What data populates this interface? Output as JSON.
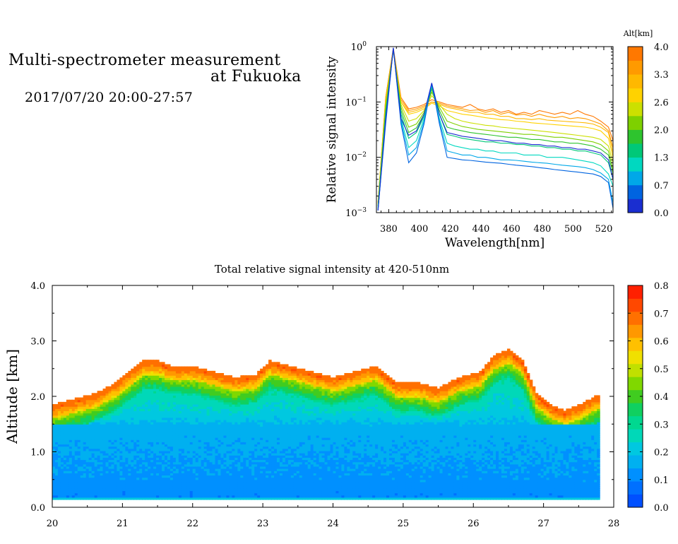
{
  "header": {
    "title_line1": "Multi-spectrometer measurement",
    "title_line2": "at Fukuoka",
    "datetime": "2017/07/20 20:00-27:57"
  },
  "chart_data": [
    {
      "type": "line",
      "xlabel": "Wavelength[nm]",
      "ylabel": "Relative signal intensity",
      "yscale": "log",
      "xlim": [
        372,
        526
      ],
      "ylim": [
        0.001,
        1
      ],
      "x_ticks": [
        380,
        400,
        420,
        440,
        460,
        480,
        500,
        520
      ],
      "y_ticks": [
        {
          "value": 1,
          "base": "10",
          "exp": "0"
        },
        {
          "value": 0.1,
          "base": "10",
          "exp": "−1"
        },
        {
          "value": 0.01,
          "base": "10",
          "exp": "−2"
        },
        {
          "value": 0.001,
          "base": "10",
          "exp": "−3"
        }
      ],
      "x": [
        373,
        378,
        383,
        388,
        393,
        398,
        403,
        408,
        413,
        418,
        423,
        428,
        433,
        438,
        443,
        448,
        453,
        458,
        463,
        468,
        473,
        478,
        483,
        488,
        493,
        498,
        503,
        508,
        513,
        518,
        523,
        526
      ],
      "series": [
        {
          "color": "#ff7800",
          "values": [
            0.0015,
            0.12,
            0.95,
            0.12,
            0.075,
            0.08,
            0.09,
            0.11,
            0.1,
            0.09,
            0.085,
            0.08,
            0.09,
            0.075,
            0.07,
            0.075,
            0.065,
            0.07,
            0.06,
            0.065,
            0.06,
            0.07,
            0.065,
            0.06,
            0.065,
            0.06,
            0.07,
            0.06,
            0.055,
            0.045,
            0.035,
            0.02
          ]
        },
        {
          "color": "#ff9a00",
          "values": [
            0.0015,
            0.12,
            0.9,
            0.11,
            0.07,
            0.075,
            0.085,
            0.1,
            0.095,
            0.085,
            0.08,
            0.075,
            0.07,
            0.072,
            0.065,
            0.07,
            0.06,
            0.065,
            0.058,
            0.06,
            0.055,
            0.06,
            0.055,
            0.052,
            0.055,
            0.05,
            0.052,
            0.05,
            0.045,
            0.04,
            0.03,
            0.015
          ]
        },
        {
          "color": "#ffb800",
          "values": [
            0.0015,
            0.1,
            0.9,
            0.1,
            0.065,
            0.07,
            0.08,
            0.1,
            0.09,
            0.08,
            0.075,
            0.07,
            0.065,
            0.065,
            0.06,
            0.06,
            0.055,
            0.055,
            0.05,
            0.05,
            0.048,
            0.05,
            0.047,
            0.046,
            0.045,
            0.044,
            0.043,
            0.042,
            0.04,
            0.035,
            0.028,
            0.012
          ]
        },
        {
          "color": "#ffd200",
          "values": [
            0.0014,
            0.1,
            0.85,
            0.1,
            0.06,
            0.065,
            0.075,
            0.095,
            0.085,
            0.07,
            0.065,
            0.06,
            0.058,
            0.055,
            0.052,
            0.05,
            0.048,
            0.047,
            0.045,
            0.044,
            0.042,
            0.041,
            0.04,
            0.039,
            0.038,
            0.037,
            0.036,
            0.035,
            0.033,
            0.03,
            0.022,
            0.01
          ]
        },
        {
          "color": "#cce000",
          "values": [
            0.0014,
            0.09,
            0.85,
            0.09,
            0.045,
            0.05,
            0.07,
            0.13,
            0.09,
            0.06,
            0.05,
            0.045,
            0.042,
            0.04,
            0.038,
            0.037,
            0.035,
            0.034,
            0.033,
            0.032,
            0.031,
            0.03,
            0.029,
            0.028,
            0.027,
            0.026,
            0.025,
            0.024,
            0.023,
            0.021,
            0.016,
            0.008
          ]
        },
        {
          "color": "#7ed000",
          "values": [
            0.0013,
            0.08,
            0.88,
            0.08,
            0.035,
            0.04,
            0.065,
            0.15,
            0.08,
            0.045,
            0.04,
            0.036,
            0.034,
            0.032,
            0.031,
            0.03,
            0.029,
            0.028,
            0.027,
            0.026,
            0.026,
            0.025,
            0.024,
            0.023,
            0.023,
            0.022,
            0.021,
            0.02,
            0.019,
            0.017,
            0.013,
            0.006
          ]
        },
        {
          "color": "#2ec42e",
          "values": [
            0.0013,
            0.07,
            0.9,
            0.07,
            0.028,
            0.034,
            0.06,
            0.17,
            0.07,
            0.035,
            0.032,
            0.03,
            0.028,
            0.027,
            0.026,
            0.025,
            0.024,
            0.023,
            0.023,
            0.022,
            0.021,
            0.021,
            0.02,
            0.019,
            0.019,
            0.018,
            0.018,
            0.017,
            0.016,
            0.014,
            0.011,
            0.005
          ]
        },
        {
          "color": "#00c878",
          "values": [
            0.0012,
            0.06,
            0.9,
            0.06,
            0.022,
            0.028,
            0.055,
            0.19,
            0.06,
            0.026,
            0.024,
            0.022,
            0.021,
            0.02,
            0.019,
            0.019,
            0.018,
            0.018,
            0.017,
            0.017,
            0.016,
            0.016,
            0.015,
            0.015,
            0.014,
            0.014,
            0.013,
            0.013,
            0.012,
            0.011,
            0.008,
            0.004
          ]
        },
        {
          "color": "#00d8c0",
          "values": [
            0.0012,
            0.05,
            0.92,
            0.05,
            0.015,
            0.02,
            0.05,
            0.2,
            0.05,
            0.018,
            0.016,
            0.015,
            0.014,
            0.014,
            0.013,
            0.013,
            0.012,
            0.012,
            0.012,
            0.011,
            0.011,
            0.011,
            0.01,
            0.01,
            0.01,
            0.0095,
            0.009,
            0.0085,
            0.008,
            0.007,
            0.005,
            0.003
          ]
        },
        {
          "color": "#00a8e8",
          "values": [
            0.0011,
            0.045,
            0.93,
            0.045,
            0.011,
            0.015,
            0.045,
            0.21,
            0.045,
            0.013,
            0.012,
            0.011,
            0.011,
            0.01,
            0.01,
            0.0095,
            0.009,
            0.009,
            0.0088,
            0.0085,
            0.0082,
            0.008,
            0.0078,
            0.0075,
            0.0072,
            0.007,
            0.0068,
            0.0065,
            0.006,
            0.0052,
            0.004,
            0.0015
          ]
        },
        {
          "color": "#0064e0",
          "values": [
            0.0011,
            0.04,
            0.95,
            0.04,
            0.008,
            0.012,
            0.04,
            0.22,
            0.04,
            0.01,
            0.0095,
            0.009,
            0.0088,
            0.0085,
            0.0082,
            0.008,
            0.0078,
            0.0075,
            0.0072,
            0.007,
            0.0068,
            0.0065,
            0.0063,
            0.006,
            0.0058,
            0.0056,
            0.0054,
            0.0052,
            0.005,
            0.0045,
            0.0035,
            0.0012
          ]
        },
        {
          "color": "#1a2ed0",
          "values": [
            0.0011,
            0.05,
            0.95,
            0.05,
            0.025,
            0.03,
            0.06,
            0.22,
            0.06,
            0.028,
            0.026,
            0.024,
            0.023,
            0.022,
            0.021,
            0.02,
            0.02,
            0.019,
            0.018,
            0.018,
            0.017,
            0.017,
            0.016,
            0.016,
            0.015,
            0.015,
            0.014,
            0.014,
            0.013,
            0.012,
            0.009,
            0.004
          ]
        }
      ],
      "colorbar": {
        "title": "Alt[km]",
        "tick_labels": [
          "4.0",
          "3.3",
          "2.6",
          "2.0",
          "1.3",
          "0.7",
          "0.0"
        ],
        "colors": [
          "#1a2ed0",
          "#0064e0",
          "#00a8e8",
          "#00d8c0",
          "#00c878",
          "#2ec42e",
          "#7ed000",
          "#cce000",
          "#ffd200",
          "#ffb800",
          "#ff9a00",
          "#ff7800"
        ]
      }
    },
    {
      "type": "heatmap",
      "title": "Total relative signal intensity at 420-510nm",
      "ylabel": "Altitude [km]",
      "xlim": [
        20,
        28
      ],
      "ylim": [
        0,
        4
      ],
      "x_ticks": [
        "20",
        "21",
        "22",
        "23",
        "24",
        "25",
        "26",
        "27",
        "28"
      ],
      "y_ticks": [
        "0.0",
        "1.0",
        "2.0",
        "3.0",
        "4.0"
      ],
      "data_end_x": 27.8,
      "boundary_altitude_km": [
        [
          20.0,
          1.8
        ],
        [
          20.3,
          1.9
        ],
        [
          20.6,
          2.0
        ],
        [
          20.9,
          2.2
        ],
        [
          21.1,
          2.4
        ],
        [
          21.3,
          2.6
        ],
        [
          21.5,
          2.6
        ],
        [
          21.7,
          2.5
        ],
        [
          22.0,
          2.5
        ],
        [
          22.3,
          2.4
        ],
        [
          22.6,
          2.3
        ],
        [
          22.9,
          2.35
        ],
        [
          23.1,
          2.6
        ],
        [
          23.4,
          2.5
        ],
        [
          23.7,
          2.4
        ],
        [
          24.0,
          2.3
        ],
        [
          24.3,
          2.4
        ],
        [
          24.6,
          2.5
        ],
        [
          24.9,
          2.2
        ],
        [
          25.2,
          2.2
        ],
        [
          25.5,
          2.1
        ],
        [
          25.8,
          2.3
        ],
        [
          26.1,
          2.4
        ],
        [
          26.3,
          2.7
        ],
        [
          26.5,
          2.8
        ],
        [
          26.7,
          2.6
        ],
        [
          26.9,
          2.0
        ],
        [
          27.1,
          1.8
        ],
        [
          27.3,
          1.7
        ],
        [
          27.5,
          1.8
        ],
        [
          27.8,
          2.0
        ]
      ],
      "colorbar": {
        "tick_labels": [
          "0.8",
          "0.7",
          "0.6",
          "0.5",
          "0.4",
          "0.3",
          "0.2",
          "0.1",
          "0.0"
        ],
        "colors": [
          "#0050ff",
          "#0070ff",
          "#0090ff",
          "#00b0f0",
          "#00c8e0",
          "#00d8b8",
          "#00d890",
          "#10d060",
          "#40cc20",
          "#80d800",
          "#c0e000",
          "#f0e000",
          "#ffc000",
          "#ff9800",
          "#ff7000",
          "#ff4800",
          "#ff2000"
        ]
      }
    }
  ]
}
